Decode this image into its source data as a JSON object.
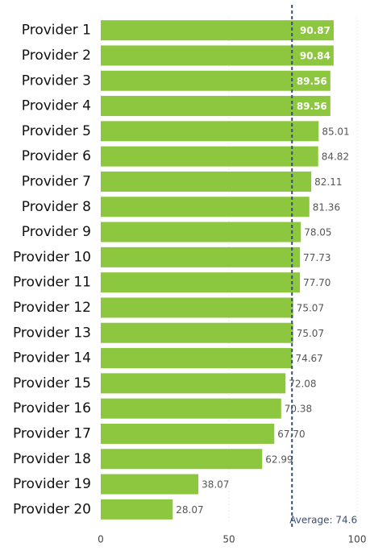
{
  "chart_data": {
    "type": "barh",
    "categories": [
      "Provider 1",
      "Provider 2",
      "Provider 3",
      "Provider 4",
      "Provider 5",
      "Provider 6",
      "Provider 7",
      "Provider 8",
      "Provider 9",
      "Provider 10",
      "Provider 11",
      "Provider 12",
      "Provider 13",
      "Provider 14",
      "Provider 15",
      "Provider 16",
      "Provider 17",
      "Provider 18",
      "Provider 19",
      "Provider 20"
    ],
    "values": [
      90.87,
      90.84,
      89.56,
      89.56,
      85.01,
      84.82,
      82.11,
      81.36,
      78.05,
      77.73,
      77.7,
      75.07,
      75.07,
      74.67,
      72.08,
      70.38,
      67.7,
      62.99,
      38.07,
      28.07
    ],
    "value_labels": [
      "90.87",
      "90.84",
      "89.56",
      "89.56",
      "85.01",
      "84.82",
      "82.11",
      "81.36",
      "78.05",
      "77.73",
      "77.70",
      "75.07",
      "75.07",
      "74.67",
      "72.08",
      "70.38",
      "67.70",
      "62.99",
      "38.07",
      "28.07"
    ],
    "color": "#8dc63f",
    "xlim": [
      0,
      100
    ],
    "xticks": [
      0,
      50,
      100
    ],
    "grid": true,
    "average": 74.6,
    "average_label": "Average: 74.6",
    "average_color": "#3b4e7a"
  }
}
